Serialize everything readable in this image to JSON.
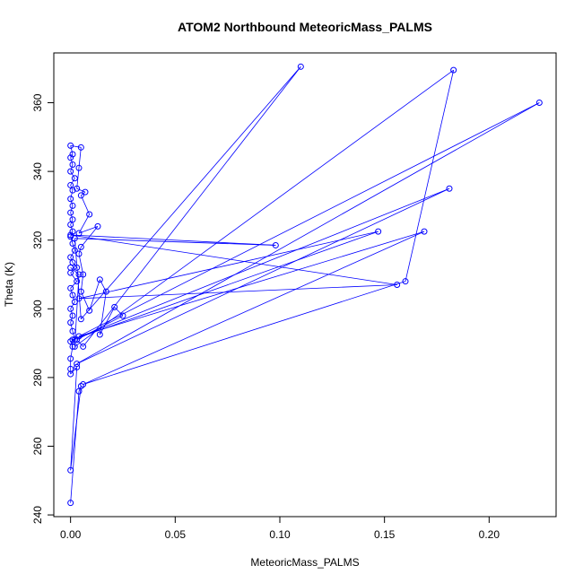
{
  "chart_data": {
    "type": "line",
    "title": "ATOM2 Northbound MeteoricMass_PALMS",
    "xlabel": "MeteoricMass_PALMS",
    "ylabel": "Theta (K)",
    "xlim": [
      -0.008,
      0.232
    ],
    "ylim": [
      239.5,
      374.5
    ],
    "x_ticks": [
      0.0,
      0.05,
      0.1,
      0.15,
      0.2
    ],
    "x_tick_labels": [
      "0.00",
      "0.05",
      "0.10",
      "0.15",
      "0.20"
    ],
    "y_ticks": [
      240,
      260,
      280,
      300,
      320,
      340,
      360
    ],
    "y_tick_labels": [
      "240",
      "260",
      "280",
      "300",
      "320",
      "340",
      "360"
    ],
    "grid": false,
    "legend": "none",
    "series": [
      {
        "color": "#0000ff",
        "marker": "open-circle",
        "points": [
          [
            0.0,
            243.5
          ],
          [
            0.004,
            276
          ],
          [
            0.005,
            277.5
          ],
          [
            0.0,
            253
          ],
          [
            0.003,
            283
          ],
          [
            0.0,
            281
          ],
          [
            0.0,
            282.5
          ],
          [
            0.0,
            285.5
          ],
          [
            0.001,
            289
          ],
          [
            0.0,
            290.5
          ],
          [
            0.002,
            291
          ],
          [
            0.001,
            293.5
          ],
          [
            0.0,
            296
          ],
          [
            0.001,
            298
          ],
          [
            0.0,
            300
          ],
          [
            0.002,
            302
          ],
          [
            0.001,
            304
          ],
          [
            0.0,
            306
          ],
          [
            0.003,
            308
          ],
          [
            0.0,
            310.5
          ],
          [
            0.003,
            312
          ],
          [
            0.001,
            313.5
          ],
          [
            0.0,
            315
          ],
          [
            0.002,
            317
          ],
          [
            0.001,
            319
          ],
          [
            0.0,
            321
          ],
          [
            0.001,
            322.5
          ],
          [
            0.0,
            324.5
          ],
          [
            0.001,
            326
          ],
          [
            0.0,
            328
          ],
          [
            0.001,
            330
          ],
          [
            0.0,
            332
          ],
          [
            0.001,
            334.5
          ],
          [
            0.0,
            336
          ],
          [
            0.002,
            338
          ],
          [
            0.0,
            340
          ],
          [
            0.001,
            342
          ],
          [
            0.0,
            344
          ],
          [
            0.001,
            345
          ],
          [
            0.0,
            347.5
          ],
          [
            0.005,
            347
          ],
          [
            0.004,
            341
          ],
          [
            0.003,
            335
          ],
          [
            0.007,
            334
          ],
          [
            0.005,
            333
          ],
          [
            0.009,
            327.5
          ],
          [
            0.004,
            322
          ],
          [
            0.013,
            324
          ],
          [
            0.005,
            318
          ],
          [
            0.004,
            316
          ],
          [
            0.006,
            310
          ],
          [
            0.005,
            305
          ],
          [
            0.009,
            299.5
          ],
          [
            0.014,
            308.5
          ],
          [
            0.017,
            305
          ],
          [
            0.014,
            292.5
          ],
          [
            0.021,
            300.5
          ],
          [
            0.025,
            298
          ],
          [
            0.003,
            291
          ],
          [
            0.006,
            289
          ],
          [
            0.11,
            370.5
          ],
          [
            0.005,
            297
          ],
          [
            0.002,
            320.5
          ],
          [
            0.098,
            318.5
          ],
          [
            0.0,
            321.5
          ],
          [
            0.156,
            307
          ],
          [
            0.004,
            303
          ],
          [
            0.147,
            322.5
          ],
          [
            0.001,
            291
          ],
          [
            0.181,
            335
          ],
          [
            0.003,
            284
          ],
          [
            0.224,
            360
          ],
          [
            0.004,
            292
          ],
          [
            0.169,
            322.5
          ],
          [
            0.006,
            278
          ],
          [
            0.16,
            308
          ],
          [
            0.183,
            369.5
          ],
          [
            0.002,
            289
          ],
          [
            0.004,
            310
          ],
          [
            0.0,
            312
          ]
        ]
      }
    ]
  }
}
